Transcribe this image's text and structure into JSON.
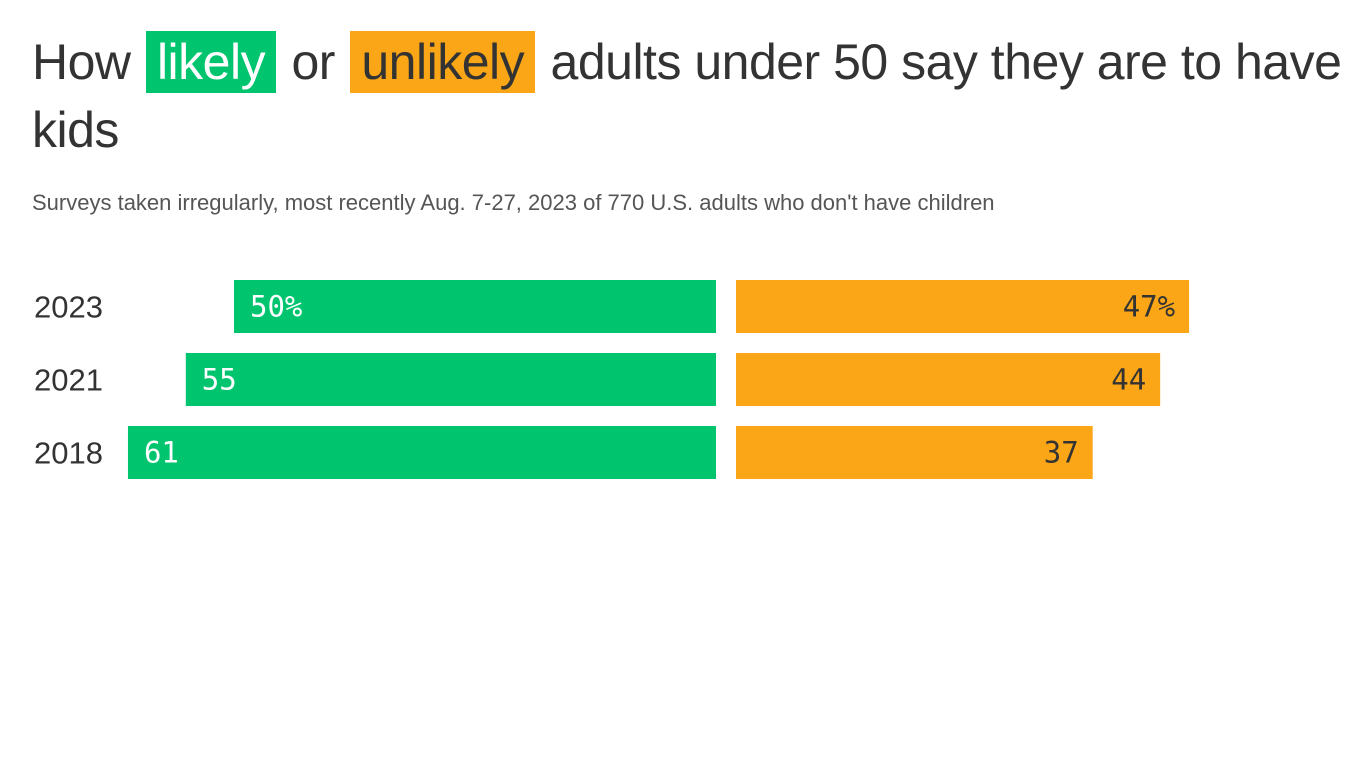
{
  "title": {
    "pre": "How",
    "likely": "likely",
    "mid": "or",
    "unlikely": "unlikely",
    "post": "adults under 50 say they are to have kids"
  },
  "subtitle": "Surveys taken irregularly, most recently Aug. 7-27, 2023 of 770 U.S. adults who don't have children",
  "colors": {
    "likely": "#00c46e",
    "unlikely": "#fba617",
    "likely_text": "#ffffff",
    "unlikely_text": "#333333"
  },
  "chart_data": {
    "type": "bar",
    "orientation": "horizontal-diverging",
    "categories": [
      "2023",
      "2021",
      "2018"
    ],
    "series": [
      {
        "name": "likely",
        "values": [
          50,
          55,
          61
        ],
        "labels": [
          "50%",
          "55",
          "61"
        ]
      },
      {
        "name": "unlikely",
        "values": [
          47,
          44,
          37
        ],
        "labels": [
          "47%",
          "44",
          "37"
        ]
      }
    ]
  }
}
